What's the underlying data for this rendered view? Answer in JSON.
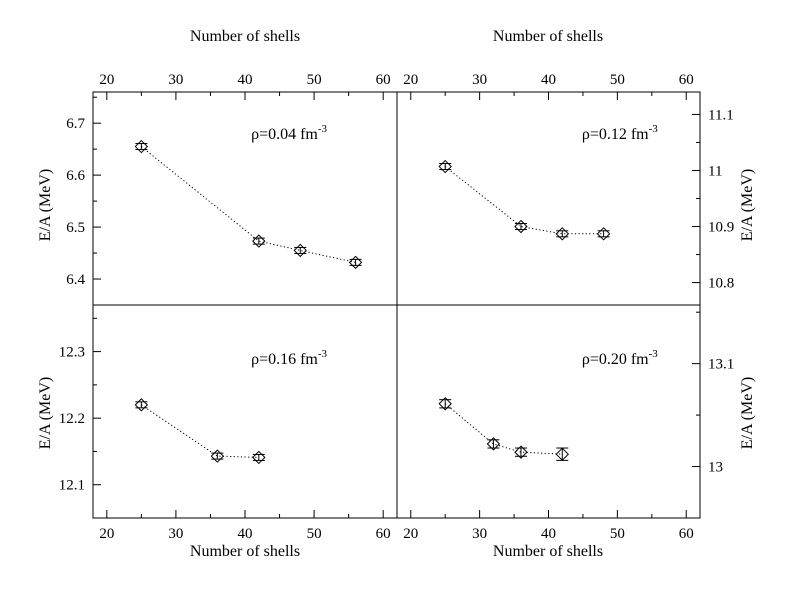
{
  "chart_data": [
    {
      "type": "scatter",
      "panel": "top-left",
      "annotation": "ρ=0.04 fm",
      "annotation_exp": "-3",
      "xlabel": "Number of shells",
      "ylabel": "E/A (MeV)",
      "xlim": [
        18,
        62
      ],
      "ylim": [
        6.35,
        6.76
      ],
      "xticks": [
        20,
        30,
        40,
        50,
        60
      ],
      "yticks": [
        6.4,
        6.5,
        6.6,
        6.7
      ],
      "ytick_labels": [
        "6.4",
        "6.5",
        "6.6",
        "6.7"
      ],
      "x": [
        25,
        42,
        48,
        56
      ],
      "y": [
        6.655,
        6.473,
        6.455,
        6.432
      ],
      "yerr": [
        0.004,
        0.004,
        0.004,
        0.004
      ]
    },
    {
      "type": "scatter",
      "panel": "top-right",
      "annotation": "ρ=0.12 fm",
      "annotation_exp": "-3",
      "xlabel": "Number of shells",
      "ylabel": "E/A (MeV)",
      "xlim": [
        18,
        62
      ],
      "ylim": [
        10.76,
        11.14
      ],
      "xticks": [
        20,
        30,
        40,
        50,
        60
      ],
      "yticks": [
        10.8,
        10.9,
        11.0,
        11.1
      ],
      "ytick_labels": [
        "10.8",
        "10.9",
        "11",
        "11.1"
      ],
      "x": [
        25,
        36,
        42,
        48
      ],
      "y": [
        11.007,
        10.9,
        10.887,
        10.887
      ],
      "yerr": [
        0.004,
        0.004,
        0.004,
        0.004
      ]
    },
    {
      "type": "scatter",
      "panel": "bottom-left",
      "annotation": "ρ=0.16 fm",
      "annotation_exp": "-3",
      "xlabel": "Number of shells",
      "ylabel": "E/A (MeV)",
      "xlim": [
        18,
        62
      ],
      "ylim": [
        12.05,
        12.37
      ],
      "xticks": [
        20,
        30,
        40,
        50,
        60
      ],
      "xtick_labels": [
        "20",
        "30",
        "40",
        "50",
        "60"
      ],
      "yticks": [
        12.1,
        12.2,
        12.3
      ],
      "ytick_labels": [
        "12.1",
        "12.2",
        "12.3"
      ],
      "x": [
        25,
        36,
        42
      ],
      "y": [
        12.22,
        12.143,
        12.141
      ],
      "yerr": [
        0.004,
        0.004,
        0.004
      ]
    },
    {
      "type": "scatter",
      "panel": "bottom-right",
      "annotation": "ρ=0.20 fm",
      "annotation_exp": "-3",
      "xlabel": "Number of shells",
      "ylabel": "E/A (MeV)",
      "xlim": [
        18,
        62
      ],
      "ylim": [
        12.95,
        13.157
      ],
      "xticks": [
        20,
        30,
        40,
        50,
        60
      ],
      "xtick_labels": [
        "20",
        "30",
        "40",
        "50",
        "60"
      ],
      "yticks": [
        13.0,
        13.1
      ],
      "ytick_labels": [
        "13",
        "13.1"
      ],
      "x": [
        25,
        32,
        36,
        42
      ],
      "y": [
        13.061,
        13.022,
        13.014,
        13.012
      ],
      "yerr": [
        0.004,
        0.004,
        0.004,
        0.006
      ]
    }
  ]
}
